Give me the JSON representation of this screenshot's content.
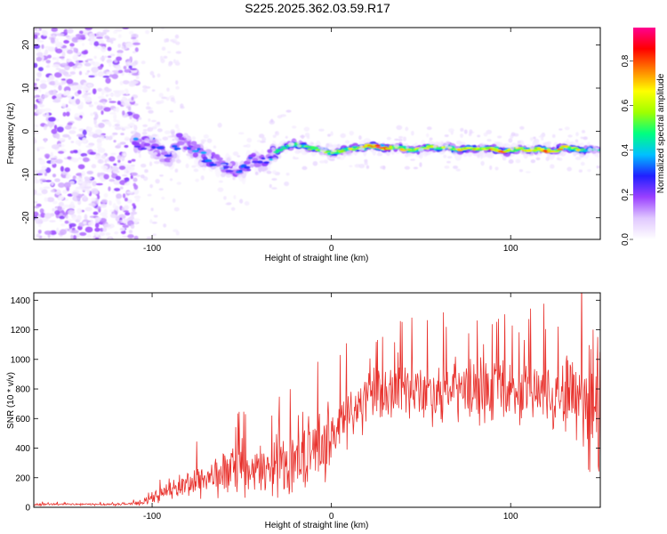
{
  "title": "S225.2025.362.03.59.R17",
  "chart_data": [
    {
      "type": "heatmap",
      "xlabel": "Height of straight line (km)",
      "ylabel": "Frequency (Hz)",
      "xlim": [
        -166,
        150
      ],
      "ylim": [
        -25,
        24
      ],
      "xticks": [
        -100,
        0,
        100
      ],
      "xtick_labels": [
        "-100",
        "0",
        "100"
      ],
      "yticks": [
        -20,
        -10,
        0,
        10,
        20
      ],
      "ytick_labels": [
        "-20",
        "-10",
        "0",
        "10",
        "20"
      ],
      "colorbar": {
        "label": "Normalized spectral amplitude",
        "range": [
          0,
          0.95
        ],
        "ticks": [
          0.0,
          0.2,
          0.4,
          0.6,
          0.8
        ],
        "tick_labels": [
          "0.0",
          "0.2",
          "0.4",
          "0.6",
          "0.8"
        ],
        "colors": [
          "#ffffff",
          "#e0c8ff",
          "#9a40ff",
          "#2020ff",
          "#00c0ff",
          "#00ff80",
          "#a0ff00",
          "#ffff00",
          "#ff8000",
          "#ff0000",
          "#ff0090"
        ]
      },
      "noise_region_x": [
        -166,
        -108
      ],
      "ridge": {
        "x": [
          -110,
          -100,
          -95,
          -90,
          -85,
          -80,
          -75,
          -70,
          -65,
          -60,
          -55,
          -50,
          -45,
          -40,
          -35,
          -30,
          -25,
          -20,
          -15,
          -10,
          -5,
          0,
          5,
          10,
          15,
          20,
          25,
          30,
          35,
          40,
          45,
          50,
          55,
          60,
          65,
          70,
          75,
          80,
          85,
          90,
          95,
          100,
          105,
          110,
          115,
          120,
          125,
          130,
          135,
          140,
          145,
          150
        ],
        "freq": [
          -2.5,
          -3,
          -5,
          -6,
          -2,
          -3,
          -5,
          -6,
          -7,
          -8,
          -9,
          -9,
          -7,
          -7,
          -6,
          -4.5,
          -3.5,
          -3,
          -3.5,
          -4,
          -4.5,
          -5,
          -4.5,
          -4,
          -4,
          -3.5,
          -3.5,
          -4,
          -3.5,
          -4,
          -4.5,
          -4,
          -3.5,
          -4,
          -3.5,
          -4.5,
          -4,
          -4,
          -4,
          -4,
          -4.5,
          -4.5,
          -4,
          -4.5,
          -4,
          -4.5,
          -4.5,
          -3.5,
          -4,
          -4.5,
          -4,
          -4.5
        ],
        "peak": [
          0.35,
          0.3,
          0.35,
          0.3,
          0.35,
          0.3,
          0.35,
          0.4,
          0.35,
          0.35,
          0.3,
          0.35,
          0.3,
          0.3,
          0.35,
          0.45,
          0.5,
          0.55,
          0.55,
          0.55,
          0.6,
          0.6,
          0.6,
          0.65,
          0.7,
          0.7,
          0.9,
          0.9,
          0.75,
          0.7,
          0.7,
          0.65,
          0.65,
          0.7,
          0.65,
          0.7,
          0.75,
          0.7,
          0.7,
          0.8,
          0.75,
          0.7,
          0.7,
          0.8,
          0.8,
          0.85,
          0.75,
          0.7,
          0.7,
          0.65,
          0.5,
          0.45
        ]
      }
    },
    {
      "type": "line",
      "xlabel": "Height of straight line (km)",
      "ylabel": "SNR (10 * v/v)",
      "xlim": [
        -166,
        150
      ],
      "ylim": [
        0,
        1450
      ],
      "xticks": [
        -100,
        0,
        100
      ],
      "xtick_labels": [
        "-100",
        "0",
        "100"
      ],
      "yticks": [
        0,
        200,
        400,
        600,
        800,
        1000,
        1200,
        1400
      ],
      "ytick_labels": [
        "0",
        "200",
        "400",
        "600",
        "800",
        "1000",
        "1200",
        "1400"
      ],
      "series": [
        {
          "name": "SNR",
          "color": "#e8312c",
          "x": [
            -166,
            -150,
            -130,
            -115,
            -105,
            -100,
            -95,
            -90,
            -85,
            -80,
            -75,
            -70,
            -65,
            -60,
            -55,
            -50,
            -45,
            -40,
            -35,
            -30,
            -25,
            -20,
            -15,
            -10,
            -5,
            0,
            5,
            10,
            15,
            20,
            25,
            30,
            35,
            40,
            45,
            50,
            55,
            60,
            65,
            70,
            75,
            80,
            85,
            90,
            95,
            100,
            105,
            110,
            115,
            120,
            125,
            130,
            135,
            140,
            145,
            150
          ],
          "trend": [
            20,
            20,
            20,
            22,
            30,
            60,
            90,
            110,
            140,
            160,
            180,
            200,
            210,
            230,
            250,
            240,
            230,
            250,
            260,
            280,
            300,
            330,
            360,
            400,
            430,
            480,
            560,
            620,
            680,
            730,
            760,
            770,
            780,
            790,
            780,
            790,
            800,
            790,
            780,
            790,
            800,
            790,
            780,
            790,
            800,
            790,
            780,
            770,
            780,
            790,
            780,
            770,
            780,
            760,
            740,
            720
          ],
          "spread": [
            10,
            10,
            10,
            12,
            20,
            40,
            60,
            80,
            110,
            130,
            150,
            170,
            180,
            200,
            210,
            220,
            200,
            220,
            230,
            250,
            260,
            270,
            280,
            300,
            300,
            320,
            300,
            280,
            260,
            250,
            250,
            260,
            250,
            260,
            260,
            270,
            270,
            280,
            280,
            280,
            280,
            270,
            280,
            280,
            280,
            280,
            280,
            290,
            290,
            300,
            320,
            350,
            420,
            600,
            700,
            720
          ]
        }
      ]
    }
  ]
}
